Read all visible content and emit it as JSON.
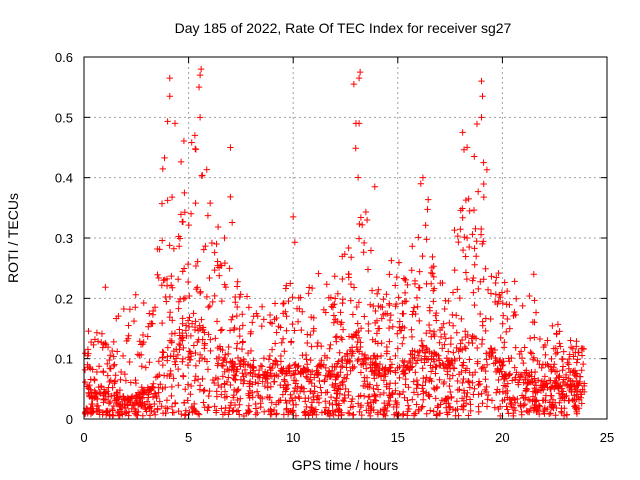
{
  "chart_data": {
    "type": "scatter",
    "title": "Day 185 of 2022, Rate Of TEC Index for receiver sg27",
    "xlabel": "GPS time / hours",
    "ylabel": "ROTI / TECUs",
    "xlim": [
      0,
      25
    ],
    "ylim": [
      0,
      0.6
    ],
    "xticks": [
      0,
      5,
      10,
      15,
      20,
      25
    ],
    "yticks": [
      0,
      0.1,
      0.2,
      0.3,
      0.4,
      0.5,
      0.6
    ],
    "xtick_labels": [
      "0",
      "5",
      "10",
      "15",
      "20",
      "25"
    ],
    "ytick_labels": [
      "0",
      "0.1",
      "0.2",
      "0.3",
      "0.4",
      "0.5",
      "0.6"
    ],
    "grid": true,
    "marker": "+",
    "color": "#ff0000",
    "envelope": {
      "x": [
        0,
        0.5,
        1,
        1.5,
        2,
        2.5,
        3,
        3.3,
        3.6,
        4,
        4.3,
        4.6,
        5,
        5.3,
        5.6,
        6,
        6.5,
        7,
        7.3,
        7.6,
        8,
        8.5,
        9,
        9.5,
        10,
        10.5,
        11,
        11.5,
        12,
        12.5,
        12.8,
        13,
        13.2,
        13.5,
        14,
        14.5,
        15,
        15.5,
        16,
        16.3,
        16.6,
        17,
        17.5,
        18,
        18.3,
        18.6,
        19,
        19.3,
        19.6,
        20,
        20.5,
        21,
        21.5,
        22,
        22.5,
        23,
        23.5,
        24
      ],
      "peak": [
        0.16,
        0.18,
        0.24,
        0.22,
        0.25,
        0.22,
        0.2,
        0.26,
        0.39,
        0.56,
        0.42,
        0.46,
        0.5,
        0.58,
        0.55,
        0.38,
        0.32,
        0.45,
        0.3,
        0.25,
        0.22,
        0.2,
        0.21,
        0.25,
        0.34,
        0.29,
        0.3,
        0.27,
        0.26,
        0.32,
        0.49,
        0.57,
        0.46,
        0.38,
        0.28,
        0.26,
        0.3,
        0.28,
        0.4,
        0.4,
        0.35,
        0.27,
        0.25,
        0.42,
        0.47,
        0.45,
        0.56,
        0.53,
        0.31,
        0.25,
        0.23,
        0.24,
        0.21,
        0.18,
        0.16,
        0.15,
        0.16,
        0.15
      ],
      "base": [
        0.05,
        0.03,
        0.04,
        0.03,
        0.03,
        0.03,
        0.04,
        0.05,
        0.07,
        0.1,
        0.11,
        0.12,
        0.13,
        0.14,
        0.13,
        0.11,
        0.1,
        0.09,
        0.08,
        0.07,
        0.07,
        0.07,
        0.07,
        0.07,
        0.07,
        0.07,
        0.07,
        0.07,
        0.07,
        0.08,
        0.1,
        0.12,
        0.1,
        0.08,
        0.07,
        0.07,
        0.07,
        0.08,
        0.1,
        0.1,
        0.09,
        0.08,
        0.08,
        0.1,
        0.12,
        0.12,
        0.12,
        0.11,
        0.09,
        0.07,
        0.06,
        0.06,
        0.06,
        0.05,
        0.05,
        0.05,
        0.05,
        0.05
      ]
    },
    "notable_points": [
      {
        "x": 4.1,
        "y": 0.565
      },
      {
        "x": 4.1,
        "y": 0.535
      },
      {
        "x": 4.35,
        "y": 0.49
      },
      {
        "x": 5.6,
        "y": 0.58
      },
      {
        "x": 5.55,
        "y": 0.57
      },
      {
        "x": 5.5,
        "y": 0.55
      },
      {
        "x": 5.55,
        "y": 0.5
      },
      {
        "x": 5.3,
        "y": 0.47
      },
      {
        "x": 7.0,
        "y": 0.45
      },
      {
        "x": 12.9,
        "y": 0.555
      },
      {
        "x": 13.2,
        "y": 0.575
      },
      {
        "x": 13.15,
        "y": 0.565
      },
      {
        "x": 13.0,
        "y": 0.49
      },
      {
        "x": 13.15,
        "y": 0.49
      },
      {
        "x": 18.1,
        "y": 0.475
      },
      {
        "x": 19.0,
        "y": 0.56
      },
      {
        "x": 19.05,
        "y": 0.535
      },
      {
        "x": 19.0,
        "y": 0.5
      },
      {
        "x": 19.1,
        "y": 0.425
      },
      {
        "x": 16.2,
        "y": 0.4
      },
      {
        "x": 16.1,
        "y": 0.39
      },
      {
        "x": 13.9,
        "y": 0.385
      },
      {
        "x": 10.0,
        "y": 0.335
      },
      {
        "x": 21.5,
        "y": 0.24
      }
    ],
    "sample_count": 2200
  }
}
